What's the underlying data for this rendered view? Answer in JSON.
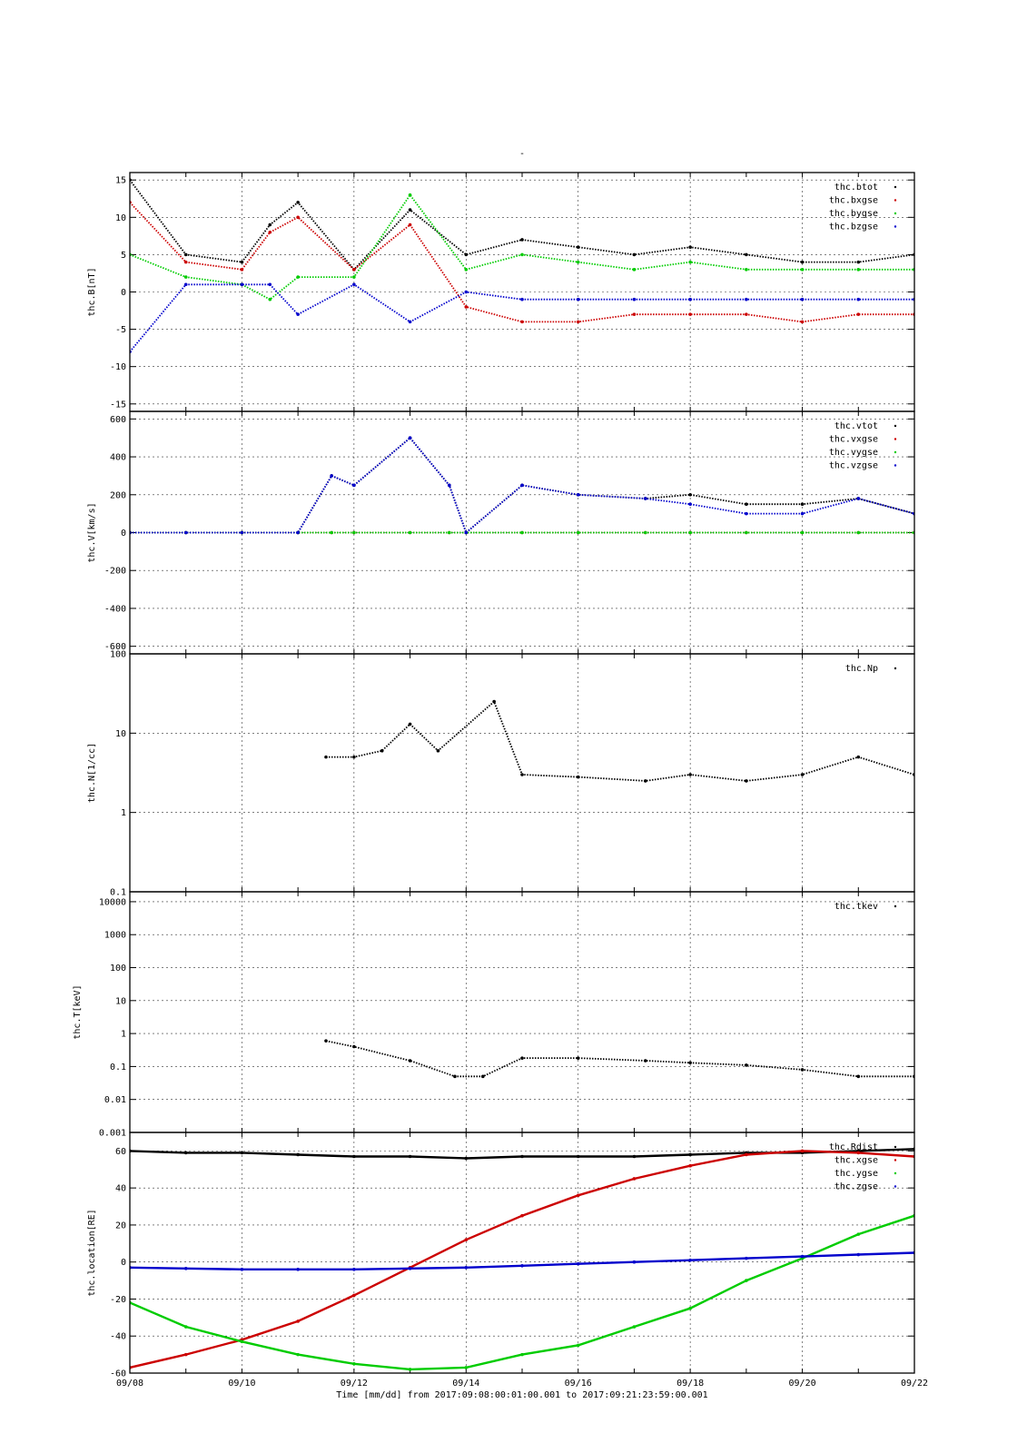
{
  "title": "-",
  "footer": {
    "time_label": "Time [mm/dd]  from 2017:09:08:00:01:00.001  to  2017:09:21:23:59:00.001"
  },
  "x_axis": {
    "start": "2017-09-08",
    "end": "2017-09-22",
    "tick_labels": [
      "09/08",
      "09/10",
      "09/12",
      "09/14",
      "09/16",
      "09/18",
      "09/20",
      "09/22"
    ],
    "grid": true
  },
  "colors": {
    "black": "#000000",
    "red": "#cc0000",
    "green": "#00cc00",
    "blue": "#0000cc"
  },
  "chart_data": [
    {
      "type": "scatter",
      "ylabel": "thc.B[nT]",
      "ylim": [
        -16,
        16
      ],
      "scale": "linear",
      "yticks": [
        -15,
        -10,
        -5,
        0,
        5,
        10,
        15
      ],
      "ytick_labels": [
        "-15",
        "-10",
        "-5",
        "0",
        "5",
        "10",
        "15"
      ],
      "legend_placement": "top-right",
      "x": [
        "09/08",
        "09/09",
        "09/10",
        "09/10.5",
        "09/11",
        "09/12",
        "09/13",
        "09/14",
        "09/15",
        "09/16",
        "09/17",
        "09/18",
        "09/19",
        "09/20",
        "09/21",
        "09/22"
      ],
      "series": [
        {
          "name": "thc.btot",
          "color": "#000000",
          "values": [
            15,
            5,
            4,
            9,
            12,
            3,
            11,
            5,
            7,
            6,
            5,
            6,
            5,
            4,
            4,
            5
          ]
        },
        {
          "name": "thc.bxgse",
          "color": "#cc0000",
          "values": [
            12,
            4,
            3,
            8,
            10,
            3,
            9,
            -2,
            -4,
            -4,
            -3,
            -3,
            -3,
            -4,
            -3,
            -3
          ]
        },
        {
          "name": "thc.bygse",
          "color": "#00cc00",
          "values": [
            5,
            2,
            1,
            -1,
            2,
            2,
            13,
            3,
            5,
            4,
            3,
            4,
            3,
            3,
            3,
            3
          ]
        },
        {
          "name": "thc.bzgse",
          "color": "#0000cc",
          "values": [
            -8,
            1,
            1,
            1,
            -3,
            1,
            -4,
            0,
            -1,
            -1,
            -1,
            -1,
            -1,
            -1,
            -1,
            -1
          ]
        }
      ]
    },
    {
      "type": "scatter",
      "ylabel": "thc.V[km/s]",
      "ylim": [
        -640,
        640
      ],
      "scale": "linear",
      "yticks": [
        -600,
        -400,
        -200,
        0,
        200,
        400,
        600
      ],
      "ytick_labels": [
        "-600",
        "-400",
        "-200",
        "0",
        "200",
        "400",
        "600"
      ],
      "legend_placement": "top-right",
      "x": [
        "09/08",
        "09/09",
        "09/10",
        "09/11",
        "09/11.6",
        "09/12",
        "09/13",
        "09/13.7",
        "09/14",
        "09/15",
        "09/16",
        "09/17.2",
        "09/18",
        "09/19",
        "09/20",
        "09/21",
        "09/22"
      ],
      "series": [
        {
          "name": "thc.vtot",
          "color": "#000000",
          "values": [
            0,
            0,
            0,
            0,
            300,
            250,
            500,
            250,
            0,
            250,
            200,
            180,
            200,
            150,
            150,
            180,
            100
          ]
        },
        {
          "name": "thc.vxgse",
          "color": "#cc0000",
          "values": [
            0,
            0,
            0,
            0,
            0,
            0,
            0,
            0,
            0,
            0,
            0,
            0,
            0,
            0,
            0,
            0,
            0
          ]
        },
        {
          "name": "thc.vygse",
          "color": "#00cc00",
          "values": [
            0,
            0,
            0,
            0,
            0,
            0,
            0,
            0,
            0,
            0,
            0,
            0,
            0,
            0,
            0,
            0,
            0
          ]
        },
        {
          "name": "thc.vzgse",
          "color": "#0000cc",
          "values": [
            0,
            0,
            0,
            0,
            300,
            250,
            500,
            250,
            0,
            250,
            200,
            180,
            150,
            100,
            100,
            180,
            100
          ]
        }
      ]
    },
    {
      "type": "scatter",
      "ylabel": "thc.N[1/cc]",
      "ylim": [
        0.1,
        100
      ],
      "scale": "log",
      "yticks": [
        0.1,
        1,
        10,
        100
      ],
      "ytick_labels": [
        "0.1",
        "1",
        "10",
        "100"
      ],
      "legend_placement": "top-right",
      "x": [
        "09/11.5",
        "09/12",
        "09/12.5",
        "09/13",
        "09/13.5",
        "09/14.5",
        "09/15",
        "09/16",
        "09/17.2",
        "09/18",
        "09/19",
        "09/20",
        "09/21",
        "09/22"
      ],
      "series": [
        {
          "name": "thc.Np",
          "color": "#000000",
          "values": [
            5,
            5,
            6,
            13,
            6,
            25,
            3,
            2.8,
            2.5,
            3,
            2.5,
            3,
            5,
            3
          ]
        }
      ]
    },
    {
      "type": "scatter",
      "ylabel": "thc.T[keV]",
      "ylim": [
        0.001,
        20000
      ],
      "scale": "log",
      "yticks": [
        0.001,
        0.01,
        0.1,
        1,
        10,
        100,
        1000,
        10000
      ],
      "ytick_labels": [
        "0.001",
        "0.01",
        "0.1",
        "1",
        "10",
        "100",
        "1000",
        "10000"
      ],
      "legend_placement": "top-right",
      "x": [
        "09/11.5",
        "09/12",
        "09/13",
        "09/13.8",
        "09/14.3",
        "09/15",
        "09/16",
        "09/17.2",
        "09/18",
        "09/19",
        "09/20",
        "09/21",
        "09/22"
      ],
      "series": [
        {
          "name": "thc.tkev",
          "color": "#000000",
          "values": [
            0.6,
            0.4,
            0.15,
            0.05,
            0.05,
            0.18,
            0.18,
            0.15,
            0.13,
            0.11,
            0.08,
            0.05,
            0.05
          ]
        }
      ]
    },
    {
      "type": "line",
      "ylabel": "thc.location[RE]",
      "ylim": [
        -60,
        70
      ],
      "scale": "linear",
      "yticks": [
        -60,
        -40,
        -20,
        0,
        20,
        40,
        60
      ],
      "ytick_labels": [
        "-60",
        "-40",
        "-20",
        "0",
        "20",
        "40",
        "60"
      ],
      "legend_placement": "top-right",
      "x": [
        "09/08",
        "09/09",
        "09/10",
        "09/11",
        "09/12",
        "09/13",
        "09/14",
        "09/15",
        "09/16",
        "09/17",
        "09/18",
        "09/19",
        "09/20",
        "09/21",
        "09/22"
      ],
      "series": [
        {
          "name": "thc.Rdist",
          "color": "#000000",
          "values": [
            60,
            59,
            59,
            58,
            57,
            57,
            56,
            57,
            57,
            57,
            58,
            59,
            59,
            60,
            61
          ]
        },
        {
          "name": "thc.xgse",
          "color": "#cc0000",
          "values": [
            -57,
            -50,
            -42,
            -32,
            -18,
            -3,
            12,
            25,
            36,
            45,
            52,
            58,
            60,
            59,
            57
          ]
        },
        {
          "name": "thc.ygse",
          "color": "#00cc00",
          "values": [
            -22,
            -35,
            -43,
            -50,
            -55,
            -58,
            -57,
            -50,
            -45,
            -35,
            -25,
            -10,
            2,
            15,
            25
          ]
        },
        {
          "name": "thc.zgse",
          "color": "#0000cc",
          "values": [
            -3,
            -3.5,
            -4,
            -4,
            -4,
            -3.5,
            -3,
            -2,
            -1,
            0,
            1,
            2,
            3,
            4,
            5
          ]
        }
      ]
    }
  ]
}
